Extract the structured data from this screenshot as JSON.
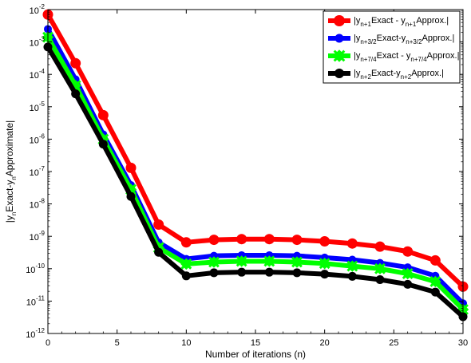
{
  "chart_data": {
    "type": "line",
    "yscale": "log",
    "xlim": [
      0,
      30
    ],
    "ylim_exponents": [
      -12,
      -2
    ],
    "grid": false,
    "legend_placement": "top-right",
    "xlabel": "Number of iterations (n)",
    "ylabel_parts": [
      "|y",
      "n",
      "Exact-y",
      "n",
      "Approximate|"
    ],
    "x_ticks": [
      "0",
      "5",
      "10",
      "15",
      "20",
      "25",
      "30"
    ],
    "y_tick_base": "10",
    "y_tick_exponents": [
      "-12",
      "-11",
      "-10",
      "-9",
      "-8",
      "-7",
      "-6",
      "-5",
      "-4",
      "-3",
      "-2"
    ],
    "x": [
      0,
      2,
      4,
      6,
      8,
      10,
      12,
      14,
      16,
      18,
      20,
      22,
      24,
      26,
      28,
      30
    ],
    "series": [
      {
        "legend_parts": [
          "|y",
          "n+1",
          "Exact - y",
          "n+1",
          "Approx.|"
        ],
        "color": "#ff0000",
        "marker": "circle",
        "values": [
          0.007,
          0.00022,
          5.5e-06,
          1.3e-07,
          2.3e-09,
          6.5e-10,
          7.8e-10,
          8.2e-10,
          8.2e-10,
          7.8e-10,
          7e-10,
          6e-10,
          4.8e-10,
          3.4e-10,
          1.8e-10,
          2.8e-11
        ]
      },
      {
        "legend_parts": [
          "|y",
          "n+3/2",
          "Exact-y",
          "n+3/2",
          "Approx.|"
        ],
        "color": "#0000ff",
        "marker": "circle",
        "values": [
          0.0025,
          7e-05,
          1.4e-06,
          3.8e-08,
          6.5e-10,
          2e-10,
          2.5e-10,
          2.6e-10,
          2.6e-10,
          2.5e-10,
          2.2e-10,
          1.9e-10,
          1.5e-10,
          1.1e-10,
          6e-11,
          8.5e-12
        ]
      },
      {
        "legend_parts": [
          "|y",
          "n+7/4",
          "Exact - y",
          "n+7/4",
          "Approx.|"
        ],
        "color": "#00ff00",
        "marker": "diamond",
        "values": [
          0.0014,
          4.5e-05,
          1e-06,
          2.8e-08,
          4.5e-10,
          1.4e-10,
          1.6e-10,
          1.7e-10,
          1.7e-10,
          1.6e-10,
          1.45e-10,
          1.2e-10,
          1e-10,
          7e-11,
          4e-11,
          5.5e-12
        ]
      },
      {
        "legend_parts": [
          "|y",
          "n+2",
          "Exact-y",
          "n+2",
          "Approx.|"
        ],
        "color": "#000000",
        "marker": "circle",
        "values": [
          0.0007,
          2.5e-05,
          7e-07,
          1.7e-08,
          3.2e-10,
          6e-11,
          7.5e-11,
          7.8e-11,
          7.8e-11,
          7.5e-11,
          6.8e-11,
          5.8e-11,
          4.6e-11,
          3.3e-11,
          1.9e-11,
          3.3e-12
        ]
      }
    ]
  }
}
